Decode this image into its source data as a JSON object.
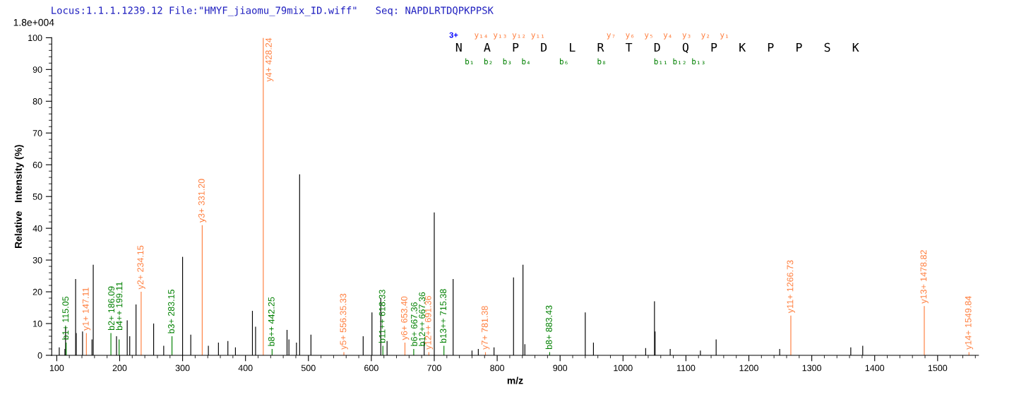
{
  "chart_data": {
    "type": "bar",
    "title": "Locus:1.1.1.1239.12 File:\"HMYF_jiaomu_79mix_ID.wiff\"   Seq: NAPDLRTDQPKPPSK",
    "xlabel": "m/z",
    "ylabel": "Relative   Intensity (%)",
    "xlim": [
      92,
      1565
    ],
    "xticks": [
      100,
      200,
      300,
      400,
      500,
      600,
      700,
      800,
      900,
      1000,
      1100,
      1200,
      1300,
      1400,
      1500
    ],
    "ylim": [
      0,
      100
    ],
    "yticks": [
      0,
      10,
      20,
      30,
      40,
      50,
      60,
      70,
      80,
      90,
      100
    ],
    "grid": false,
    "legend": false,
    "annotations": [
      "1.8e+004",
      "3+",
      "N   A   P   D   L   R   T   D   Q   P   K   P   P   S   K",
      "    y₁₄ y₁₃ y₁₂ y₁₁             y₇  y₆  y₅  y₄  y₃  y₂  y₁",
      "  b₁  b₂  b₃  b₄      b₆      b₈          b₁₁ b₁₂ b₁₃"
    ],
    "series": [
      {
        "color": "#000000",
        "x": [
          104,
          113,
          114,
          130,
          131,
          141,
          156,
          158,
          195,
          212,
          216,
          226,
          254,
          270,
          300,
          313,
          341,
          357,
          372,
          384,
          411,
          416,
          466,
          469,
          481,
          486,
          504,
          587,
          601,
          615,
          625,
          684,
          700,
          730,
          760,
          770,
          795,
          826,
          841,
          844,
          940,
          953,
          1036,
          1050,
          1051,
          1075,
          1123,
          1148,
          1249,
          1362,
          1381
        ],
        "values": [
          2.5,
          2,
          9,
          24,
          7,
          7.5,
          5,
          28.5,
          6,
          11,
          6,
          16,
          10,
          3,
          31,
          6.5,
          3,
          4,
          4.5,
          2.5,
          14,
          9,
          8,
          5,
          4,
          57,
          6.5,
          6,
          13.5,
          18,
          4.5,
          4.5,
          45,
          24,
          1.5,
          2,
          2.5,
          24.5,
          28.5,
          3.5,
          13.5,
          4,
          2.3,
          17,
          7.5,
          2,
          1.5,
          5,
          2,
          2.5,
          3
        ]
      },
      {
        "color": "#ff7f3f",
        "x": [
          147.11,
          234.15,
          331.2,
          428.24,
          556.35,
          653.4,
          691.36,
          781.38,
          1266.73,
          1478.82,
          1549.84
        ],
        "values": [
          7,
          20,
          41,
          100,
          1,
          4,
          1,
          1,
          12.5,
          15.5,
          1
        ],
        "value_labels": [
          "y1+ 147.11",
          "y2+ 234.15",
          "y3+ 331.20",
          "y4+ 428.24",
          "y5+ 556.35.33",
          "y6+ 653.40",
          "y12++ 691.36",
          "y7+ 781.38",
          "y11+ 1266.73",
          "y13+ 1478.82",
          "y14+ 1549.84"
        ]
      },
      {
        "color": "#008000",
        "x": [
          115.05,
          186.09,
          199.11,
          283.15,
          442.25,
          618.33,
          667.36,
          715.38,
          883.43
        ],
        "values": [
          4,
          7,
          5,
          6,
          2,
          3,
          2,
          3,
          1
        ],
        "value_labels": [
          "b1+ 115.05",
          "b2+ 186.09\nb4++ 199.11",
          null,
          "b3+ 283.15",
          "b8++ 442.25",
          "b11++ 618.33",
          "b6+ 667.36\nb12++ 667.36",
          "b13++ 715.38",
          "b8+ 883.43"
        ]
      }
    ]
  }
}
